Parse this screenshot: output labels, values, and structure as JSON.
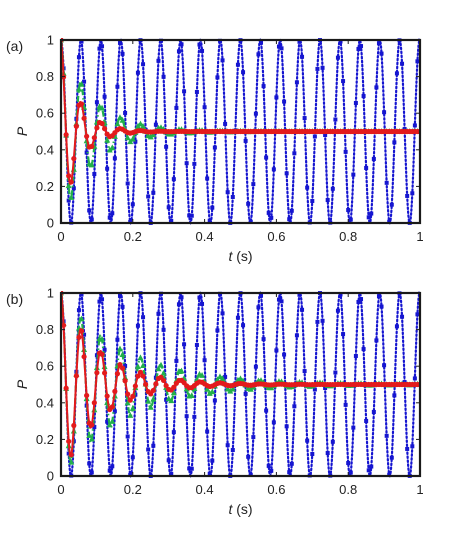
{
  "colors": {
    "blue": "#1515d0",
    "green": "#22b04a",
    "red": "#e31a1c",
    "frame": "#1a1a1a"
  },
  "chart_data": [
    {
      "type": "line",
      "panel_label": "(a)",
      "xlabel_var": "t",
      "xlabel_unit": " (s)",
      "ylabel": "P",
      "xlim": [
        0,
        1
      ],
      "ylim": [
        0,
        1
      ],
      "xticks": [
        0,
        0.2,
        0.4,
        0.6,
        0.8,
        1
      ],
      "xtick_labels": [
        "0",
        "0.2",
        "0.4",
        "0.6",
        "0.8",
        "1"
      ],
      "yticks": [
        0,
        0.2,
        0.4,
        0.6,
        0.8,
        1
      ],
      "ytick_labels": [
        "0",
        "0.2",
        "0.4",
        "0.6",
        "0.8",
        "1"
      ],
      "grid": false,
      "series": [
        {
          "color": "blue",
          "marker": "square",
          "style": "dotted",
          "period_s": 0.0555,
          "decay_s": 1000,
          "linear_decay": 0
        },
        {
          "color": "green",
          "marker": "triangle",
          "style": "dashdot",
          "period_s": 0.0555,
          "decay_s": 0.09,
          "linear_decay": 0.18
        },
        {
          "color": "red",
          "marker": "circle",
          "style": "solid",
          "period_s": 0.0555,
          "decay_s": 0.05,
          "linear_decay": 0.7
        }
      ]
    },
    {
      "type": "line",
      "panel_label": "(b)",
      "xlabel_var": "t",
      "xlabel_unit": " (s)",
      "ylabel": "P",
      "xlim": [
        0,
        1
      ],
      "ylim": [
        0,
        1
      ],
      "xticks": [
        0,
        0.2,
        0.4,
        0.6,
        0.8,
        1
      ],
      "xtick_labels": [
        "0",
        "0.2",
        "0.4",
        "0.6",
        "0.8",
        "1"
      ],
      "yticks": [
        0,
        0.2,
        0.4,
        0.6,
        0.8,
        1
      ],
      "ytick_labels": [
        "0",
        "0.2",
        "0.4",
        "0.6",
        "0.8",
        "1"
      ],
      "grid": false,
      "series": [
        {
          "color": "blue",
          "marker": "square",
          "style": "dotted",
          "period_s": 0.0555,
          "decay_s": 1000,
          "linear_decay": 0
        },
        {
          "color": "green",
          "marker": "triangle",
          "style": "dashdot",
          "period_s": 0.0555,
          "decay_s": 0.18,
          "linear_decay": 0
        },
        {
          "color": "red",
          "marker": "circle",
          "style": "solid",
          "period_s": 0.0555,
          "decay_s": 0.11,
          "linear_decay": 0
        }
      ]
    }
  ]
}
